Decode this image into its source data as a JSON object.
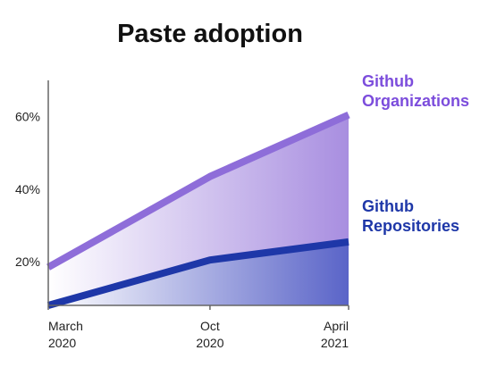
{
  "chart_data": {
    "type": "area",
    "title": "Paste adoption",
    "xlabel": "",
    "ylabel": "",
    "x": [
      [
        "March",
        "2020"
      ],
      [
        "Oct",
        "2020"
      ],
      [
        "April",
        "2021"
      ]
    ],
    "x_numeric": [
      0,
      7,
      13
    ],
    "yticks": [
      "20%",
      "40%",
      "60%"
    ],
    "ytick_values": [
      20,
      40,
      60
    ],
    "ylim": [
      8,
      70
    ],
    "grid": false,
    "series": [
      {
        "name": [
          "Github",
          "Organizations"
        ],
        "values": [
          18.5,
          43.5,
          60.5
        ],
        "color": "#8e6dd9",
        "label_color": "#7c4ddc",
        "fill_top": "#a88ee0",
        "fill_bottom": "#ffffff"
      },
      {
        "name": [
          "Github",
          "Repositories"
        ],
        "values": [
          8,
          20.5,
          25.5
        ],
        "color": "#1e37a8",
        "label_color": "#1e37a8",
        "fill_top": "#5a64c8",
        "fill_bottom": "#ffffff"
      }
    ]
  }
}
